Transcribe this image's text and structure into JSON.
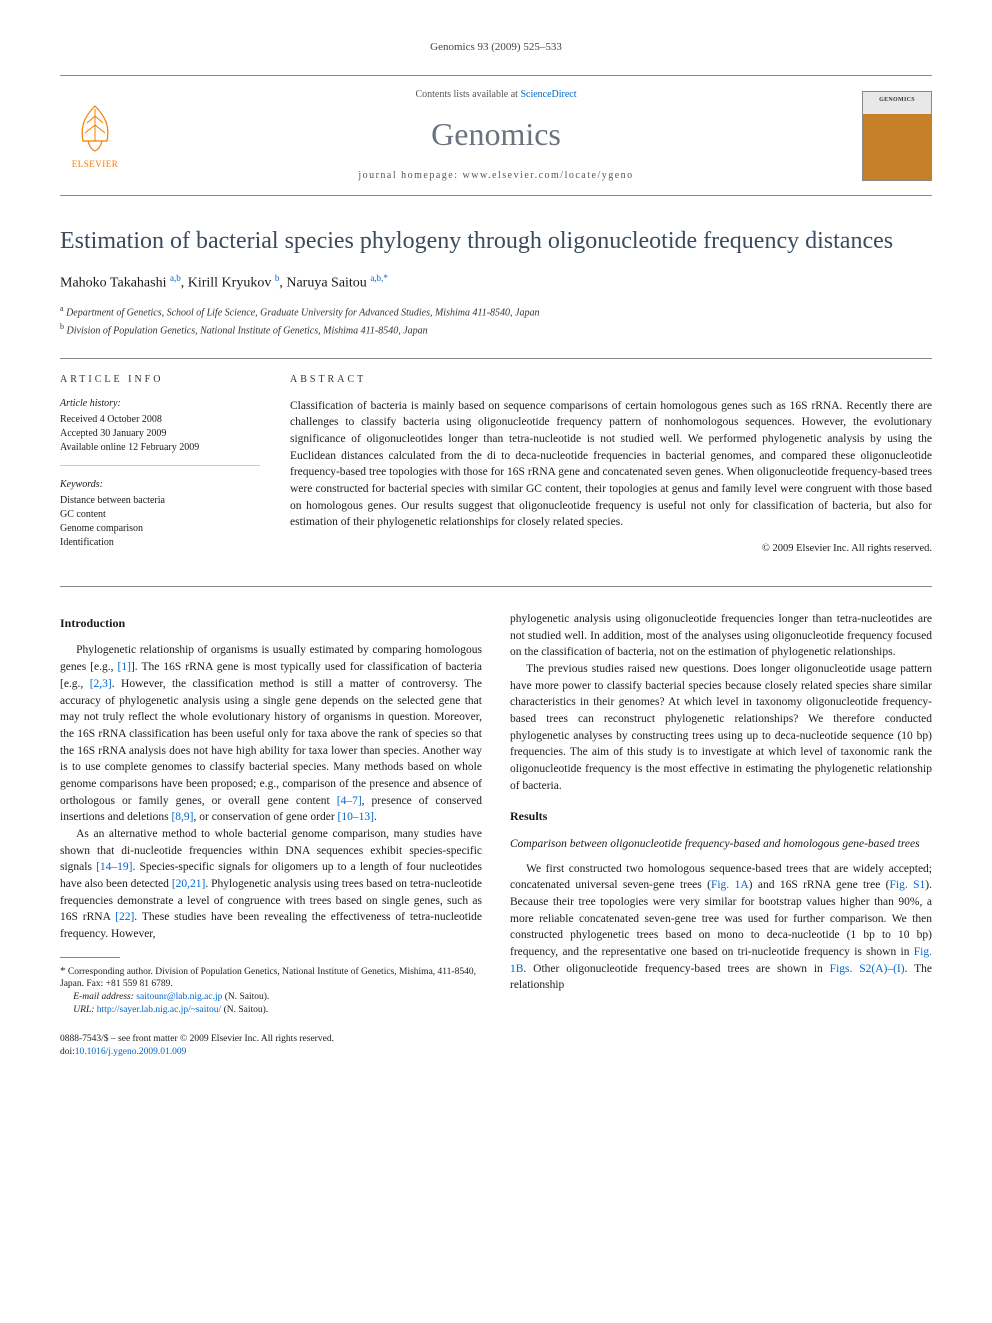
{
  "running_header": "Genomics 93 (2009) 525–533",
  "masthead": {
    "contents_prefix": "Contents lists available at ",
    "contents_link": "ScienceDirect",
    "journal_name": "Genomics",
    "homepage_label": "journal homepage: ",
    "homepage_url": "www.elsevier.com/locate/ygeno",
    "elsevier_label": "ELSEVIER",
    "cover_label": "GENOMICS"
  },
  "article": {
    "title": "Estimation of bacterial species phylogeny through oligonucleotide frequency distances",
    "authors_html": "Mahoko Takahashi",
    "author1": "Mahoko Takahashi",
    "author1_aff": "a,b",
    "author2": "Kirill Kryukov",
    "author2_aff": "b",
    "author3": "Naruya Saitou",
    "author3_aff": "a,b,",
    "corr_mark": "*",
    "affiliations": {
      "a": "Department of Genetics, School of Life Science, Graduate University for Advanced Studies, Mishima 411-8540, Japan",
      "b": "Division of Population Genetics, National Institute of Genetics, Mishima 411-8540, Japan"
    }
  },
  "info": {
    "heading": "ARTICLE INFO",
    "history_label": "Article history:",
    "received": "Received 4 October 2008",
    "accepted": "Accepted 30 January 2009",
    "online": "Available online 12 February 2009",
    "keywords_label": "Keywords:",
    "keywords": [
      "Distance between bacteria",
      "GC content",
      "Genome comparison",
      "Identification"
    ]
  },
  "abstract": {
    "heading": "ABSTRACT",
    "text": "Classification of bacteria is mainly based on sequence comparisons of certain homologous genes such as 16S rRNA. Recently there are challenges to classify bacteria using oligonucleotide frequency pattern of nonhomologous sequences. However, the evolutionary significance of oligonucleotides longer than tetra-nucleotide is not studied well. We performed phylogenetic analysis by using the Euclidean distances calculated from the di to deca-nucleotide frequencies in bacterial genomes, and compared these oligonucleotide frequency-based tree topologies with those for 16S rRNA gene and concatenated seven genes. When oligonucleotide frequency-based trees were constructed for bacterial species with similar GC content, their topologies at genus and family level were congruent with those based on homologous genes. Our results suggest that oligonucleotide frequency is useful not only for classification of bacteria, but also for estimation of their phylogenetic relationships for closely related species.",
    "copyright": "© 2009 Elsevier Inc. All rights reserved."
  },
  "body": {
    "intro_heading": "Introduction",
    "intro_p1": "Phylogenetic relationship of organisms is usually estimated by comparing homologous genes [e.g., [1]]. The 16S rRNA gene is most typically used for classification of bacteria [e.g., [2,3]. However, the classification method is still a matter of controversy. The accuracy of phylogenetic analysis using a single gene depends on the selected gene that may not truly reflect the whole evolutionary history of organisms in question. Moreover, the 16S rRNA classification has been useful only for taxa above the rank of species so that the 16S rRNA analysis does not have high ability for taxa lower than species. Another way is to use complete genomes to classify bacterial species. Many methods based on whole genome comparisons have been proposed; e.g., comparison of the presence and absence of orthologous or family genes, or overall gene content [4–7], presence of conserved insertions and deletions [8,9], or conservation of gene order [10–13].",
    "intro_p2": "As an alternative method to whole bacterial genome comparison, many studies have shown that di-nucleotide frequencies within DNA sequences exhibit species-specific signals [14–19]. Species-specific signals for oligomers up to a length of four nucleotides have also been detected [20,21]. Phylogenetic analysis using trees based on tetra-nucleotide frequencies demonstrate a level of congruence with trees based on single genes, such as 16S rRNA [22]. These studies have been revealing the effectiveness of tetra-nucleotide frequency. However,",
    "intro_p3": "phylogenetic analysis using oligonucleotide frequencies longer than tetra-nucleotides are not studied well. In addition, most of the analyses using oligonucleotide frequency focused on the classification of bacteria, not on the estimation of phylogenetic relationships.",
    "intro_p4": "The previous studies raised new questions. Does longer oligonucleotide usage pattern have more power to classify bacterial species because closely related species share similar characteristics in their genomes? At which level in taxonomy oligonucleotide frequency-based trees can reconstruct phylogenetic relationships? We therefore conducted phylogenetic analyses by constructing trees using up to deca-nucleotide sequence (10 bp) frequencies. The aim of this study is to investigate at which level of taxonomic rank the oligonucleotide frequency is the most effective in estimating the phylogenetic relationship of bacteria.",
    "results_heading": "Results",
    "results_sub": "Comparison between oligonucleotide frequency-based and homologous gene-based trees",
    "results_p1": "We first constructed two homologous sequence-based trees that are widely accepted; concatenated universal seven-gene trees (Fig. 1A) and 16S rRNA gene tree (Fig. S1). Because their tree topologies were very similar for bootstrap values higher than 90%, a more reliable concatenated seven-gene tree was used for further comparison. We then constructed phylogenetic trees based on mono to deca-nucleotide (1 bp to 10 bp) frequency, and the representative one based on tri-nucleotide frequency is shown in Fig. 1B. Other oligonucleotide frequency-based trees are shown in Figs. S2(A)–(I). The relationship"
  },
  "footnotes": {
    "corr": "Corresponding author. Division of Population Genetics, National Institute of Genetics, Mishima, 411-8540, Japan. Fax: +81 559 81 6789.",
    "email_label": "E-mail address:",
    "email": "saitounr@lab.nig.ac.jp",
    "email_paren": "(N. Saitou).",
    "url_label": "URL:",
    "url": "http://sayer.lab.nig.ac.jp/~saitou/",
    "url_paren": "(N. Saitou)."
  },
  "bottom": {
    "issn_line": "0888-7543/$ – see front matter © 2009 Elsevier Inc. All rights reserved.",
    "doi_label": "doi:",
    "doi": "10.1016/j.ygeno.2009.01.009"
  },
  "colors": {
    "link": "#0066cc",
    "title": "#3b4a5c",
    "elsevier": "#f57c00"
  }
}
